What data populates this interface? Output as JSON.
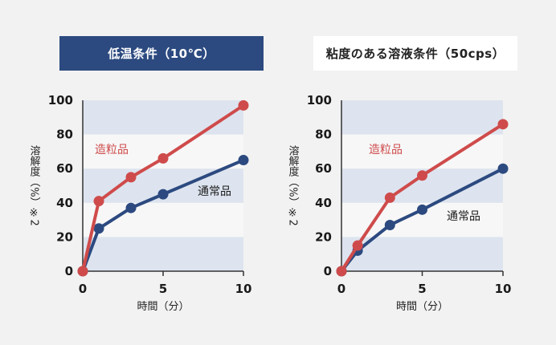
{
  "chart_data": [
    {
      "type": "line",
      "title": "低温条件（10℃）",
      "xlabel": "時間（分）",
      "ylabel": "溶解度（%）※2",
      "x_ticks": [
        "0",
        "5",
        "10"
      ],
      "y_ticks": [
        "0",
        "20",
        "40",
        "60",
        "80",
        "100"
      ],
      "xlim": [
        0,
        10
      ],
      "ylim": [
        0,
        100
      ],
      "grid": "horizontal bands",
      "series": [
        {
          "name": "造粒品",
          "color": "#cf4b4b",
          "x": [
            0,
            1,
            3,
            5,
            10
          ],
          "y": [
            0,
            41,
            55,
            66,
            97
          ]
        },
        {
          "name": "通常品",
          "color": "#2c4a80",
          "x": [
            0,
            1,
            3,
            5,
            10
          ],
          "y": [
            0,
            25,
            37,
            45,
            65
          ]
        }
      ]
    },
    {
      "type": "line",
      "title": "粘度のある溶液条件（50cps）",
      "xlabel": "時間（分）",
      "ylabel": "溶解度（%）※2",
      "x_ticks": [
        "0",
        "5",
        "10"
      ],
      "y_ticks": [
        "0",
        "20",
        "40",
        "60",
        "80",
        "100"
      ],
      "xlim": [
        0,
        10
      ],
      "ylim": [
        0,
        100
      ],
      "grid": "horizontal bands",
      "series": [
        {
          "name": "造粒品",
          "color": "#cf4b4b",
          "x": [
            0,
            1,
            3,
            5,
            10
          ],
          "y": [
            0,
            15,
            43,
            56,
            86
          ]
        },
        {
          "name": "通常品",
          "color": "#2c4a80",
          "x": [
            0,
            1,
            3,
            5,
            10
          ],
          "y": [
            0,
            12,
            27,
            36,
            60
          ]
        }
      ]
    }
  ],
  "colors": {
    "band": "#dde4ef",
    "panel": "#f7f7f7",
    "background": "#f2f2f2",
    "header_left": "#2c4a80"
  }
}
